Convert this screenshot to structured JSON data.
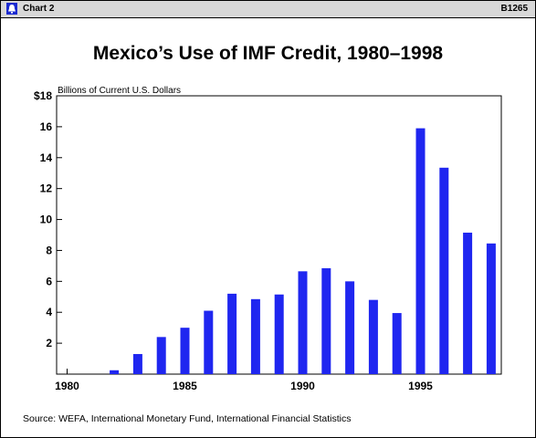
{
  "header": {
    "chart_label": "Chart 2",
    "chart_code": "B1265",
    "logo_icon": "bell-logo-icon"
  },
  "footer": {
    "source": "Source:  WEFA, International Monetary Fund, International Financial Statistics"
  },
  "chart_data": {
    "type": "bar",
    "title": "Mexico’s Use of IMF Credit, 1980–1998",
    "ylabel": "Billions of Current U.S. Dollars",
    "xlabel": "",
    "categories": [
      "1980",
      "1981",
      "1982",
      "1983",
      "1984",
      "1985",
      "1986",
      "1987",
      "1988",
      "1989",
      "1990",
      "1991",
      "1992",
      "1993",
      "1994",
      "1995",
      "1996",
      "1997",
      "1998"
    ],
    "values": [
      0,
      0,
      0.25,
      1.3,
      2.4,
      3.0,
      4.1,
      5.2,
      4.85,
      5.15,
      6.65,
      6.85,
      6.0,
      4.8,
      3.95,
      15.9,
      13.35,
      9.15,
      8.45
    ],
    "xticks": [
      "1980",
      "1985",
      "1990",
      "1995"
    ],
    "yticks": [
      "2",
      "4",
      "6",
      "8",
      "10",
      "12",
      "14",
      "16",
      "$18"
    ],
    "ylim": [
      0,
      18
    ],
    "bar_color": "#1f26f0",
    "grid": false
  }
}
